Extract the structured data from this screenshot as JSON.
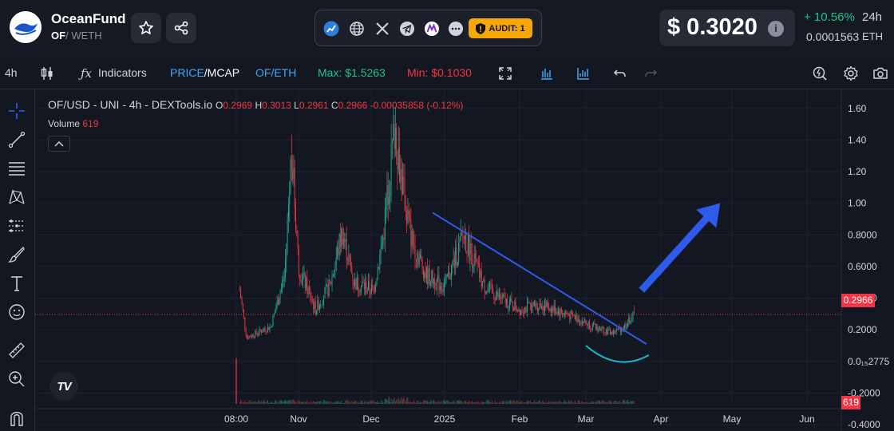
{
  "header": {
    "token_name": "OceanFund",
    "symbol": "OF",
    "pair_separator": "/",
    "quote": "WETH",
    "links": [
      "chart-icon",
      "globe-icon",
      "x-icon",
      "telegram-icon",
      "linktree-icon",
      "more-icon"
    ],
    "audit_label": "AUDIT: 1",
    "price": "$ 0.3020",
    "change_24h": "+ 10.56%",
    "change_period": "24h",
    "price_eth": "0.0001563",
    "price_eth_unit": "ETH",
    "colors": {
      "positive": "#25c18a",
      "audit": "#f5a70a",
      "accent": "#2962ff"
    }
  },
  "toolbar": {
    "interval": "4h",
    "indicators_label": "Indicators",
    "price_label": "PRICE",
    "mcap_label": "/MCAP",
    "pair_toggle": "OF/ETH",
    "max_label": "Max: $1.5263",
    "min_label": "Min: $0.1030"
  },
  "legend": {
    "title": "OF/USD - UNI - 4h - DEXTools.io",
    "o_label": "O",
    "o_value": "0.2969",
    "h_label": "H",
    "h_value": "0.3013",
    "l_label": "L",
    "l_value": "0.2961",
    "c_label": "C",
    "c_value": "0.2966",
    "change": "-0.00035858 (-0.12%)",
    "volume_label": "Volume",
    "volume_value": "619"
  },
  "tv_logo": "TV",
  "chart_data": {
    "type": "candlestick",
    "x_ticks": [
      "08:00",
      "Nov",
      "Dec",
      "2025",
      "Feb",
      "Mar",
      "Apr",
      "May",
      "Jun"
    ],
    "y_ticks": [
      "1.60",
      "1.40",
      "1.20",
      "1.00",
      "0.8000",
      "0.6000",
      "0.4000",
      "0.2000",
      "0.0₁₅2775",
      "-0.2000",
      "-0.4000"
    ],
    "ylim": [
      -0.44,
      1.72
    ],
    "last_price": 0.2966,
    "last_price_label": "0.2966",
    "volume_last": 619,
    "volume_tag": "619",
    "approx_path": [
      {
        "date": "2024-10-15",
        "close": 0.45
      },
      {
        "date": "2024-10-17",
        "close": 0.15
      },
      {
        "date": "2024-10-24",
        "close": 0.22
      },
      {
        "date": "2024-10-28",
        "close": 0.55
      },
      {
        "date": "2024-10-30",
        "close": 1.35
      },
      {
        "date": "2024-11-01",
        "close": 0.6
      },
      {
        "date": "2024-11-08",
        "close": 0.33
      },
      {
        "date": "2024-11-14",
        "close": 0.48
      },
      {
        "date": "2024-11-19",
        "close": 0.82
      },
      {
        "date": "2024-11-24",
        "close": 0.5
      },
      {
        "date": "2024-12-02",
        "close": 0.45
      },
      {
        "date": "2024-12-06",
        "close": 0.78
      },
      {
        "date": "2024-12-11",
        "close": 1.5
      },
      {
        "date": "2024-12-14",
        "close": 1.12
      },
      {
        "date": "2024-12-18",
        "close": 0.78
      },
      {
        "date": "2024-12-24",
        "close": 0.55
      },
      {
        "date": "2025-01-01",
        "close": 0.47
      },
      {
        "date": "2025-01-09",
        "close": 0.8
      },
      {
        "date": "2025-01-17",
        "close": 0.48
      },
      {
        "date": "2025-01-24",
        "close": 0.4
      },
      {
        "date": "2025-02-01",
        "close": 0.33
      },
      {
        "date": "2025-02-10",
        "close": 0.36
      },
      {
        "date": "2025-02-17",
        "close": 0.32
      },
      {
        "date": "2025-02-24",
        "close": 0.28
      },
      {
        "date": "2025-03-04",
        "close": 0.22
      },
      {
        "date": "2025-03-12",
        "close": 0.18
      },
      {
        "date": "2025-03-17",
        "close": 0.22
      },
      {
        "date": "2025-03-21",
        "close": 0.3
      }
    ],
    "annotations": [
      {
        "type": "trendline",
        "from": {
          "date": "2024-12-27",
          "value": 0.94
        },
        "to": {
          "date": "2025-03-26",
          "value": 0.11
        },
        "color": "#2f5bea"
      },
      {
        "type": "arc",
        "from": {
          "date": "2025-03-01",
          "value": 0.1
        },
        "to": {
          "date": "2025-03-27",
          "value": 0.04
        },
        "color": "#1fb6c9"
      },
      {
        "type": "arrow",
        "from": {
          "date": "2025-03-24",
          "value": 0.45
        },
        "to": {
          "date": "2025-04-26",
          "value": 1.0
        },
        "color": "#2f5bea"
      }
    ],
    "colors": {
      "up": "#22ab94",
      "down": "#f23645",
      "price_line": "#f23645"
    }
  }
}
